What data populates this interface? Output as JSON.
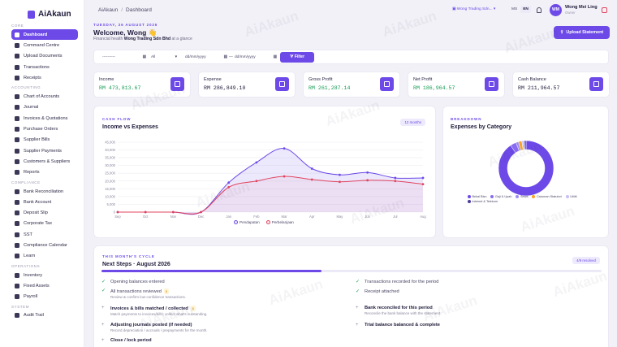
{
  "app": {
    "name": "AiAkaun"
  },
  "sidebar": {
    "sections": [
      {
        "title": "CORE",
        "items": [
          {
            "label": "Dashboard",
            "icon": "grid-icon",
            "active": true
          },
          {
            "label": "Command Centre",
            "icon": "command-icon"
          },
          {
            "label": "Upload Documents",
            "icon": "upload-icon"
          },
          {
            "label": "Transactions",
            "icon": "transactions-icon"
          },
          {
            "label": "Receipts",
            "icon": "receipt-icon"
          }
        ]
      },
      {
        "title": "ACCOUNTING",
        "items": [
          {
            "label": "Chart of Accounts",
            "icon": "list-icon"
          },
          {
            "label": "Journal",
            "icon": "journal-icon"
          },
          {
            "label": "Invoices & Quotations",
            "icon": "invoice-icon"
          },
          {
            "label": "Purchase Orders",
            "icon": "cart-icon"
          },
          {
            "label": "Supplier Bills",
            "icon": "bill-icon"
          },
          {
            "label": "Supplier Payments",
            "icon": "payment-icon"
          },
          {
            "label": "Customers & Suppliers",
            "icon": "users-icon"
          },
          {
            "label": "Reports",
            "icon": "report-icon"
          }
        ]
      },
      {
        "title": "COMPLIANCE",
        "items": [
          {
            "label": "Bank Reconciliation",
            "icon": "check-icon"
          },
          {
            "label": "Bank Account",
            "icon": "bank-icon"
          },
          {
            "label": "Deposit Slip",
            "icon": "deposit-icon"
          },
          {
            "label": "Corporate Tax",
            "icon": "tax-icon"
          },
          {
            "label": "SST",
            "icon": "sst-icon"
          },
          {
            "label": "Compliance Calendar",
            "icon": "calendar-icon"
          },
          {
            "label": "Learn",
            "icon": "learn-icon"
          }
        ]
      },
      {
        "title": "OPERATIONS",
        "items": [
          {
            "label": "Inventory",
            "icon": "inventory-icon"
          },
          {
            "label": "Fixed Assets",
            "icon": "assets-icon"
          },
          {
            "label": "Payroll",
            "icon": "payroll-icon"
          }
        ]
      },
      {
        "title": "SYSTEM",
        "items": [
          {
            "label": "Audit Trail",
            "icon": "audit-icon"
          }
        ]
      }
    ]
  },
  "topbar": {
    "breadcrumb": [
      "AiAkaun",
      "Dashboard"
    ],
    "company": "Wong Trading Sdn...",
    "languages": [
      "MS",
      "EN"
    ],
    "active_language": "EN",
    "user": {
      "initials": "WM",
      "name": "Wong Mei Ling",
      "role": "Owner"
    }
  },
  "header": {
    "date": "TUESDAY, 26 AUGUST 2026",
    "greeting": "Welcome, Wong 👋",
    "subtitle_prefix": "Financial health ",
    "company_name": "Wong Trading Sdn Bhd",
    "subtitle_suffix": " at a glance",
    "upload_button": "Upload Statement"
  },
  "filters": {
    "company_placeholder": "----------",
    "type_value": "All",
    "date_from_placeholder": "dd/mm/yyyy",
    "range_sep": "—",
    "date_to_placeholder": "dd/mm/yyyy",
    "button": "Filter"
  },
  "kpis": [
    {
      "label": "Income",
      "value": "RM 473,813.67",
      "color": "#1a9e57"
    },
    {
      "label": "Expense",
      "value": "RM 286,849.10",
      "color": "#1e1b3a"
    },
    {
      "label": "Gross Profit",
      "value": "RM 261,287.14",
      "color": "#1a9e57"
    },
    {
      "label": "Net Profit",
      "value": "RM 186,964.57",
      "color": "#1a9e57"
    },
    {
      "label": "Cash Balance",
      "value": "RM 211,964.57",
      "color": "#1e1b3a"
    }
  ],
  "cashflow": {
    "eyebrow": "CASH FLOW",
    "title": "Income vs Expenses",
    "badge": "12 months",
    "legend": [
      "Pendapatan",
      "Perbelanjaan"
    ]
  },
  "breakdown": {
    "eyebrow": "BREAKDOWN",
    "title": "Expenses by Category"
  },
  "chart_data": [
    {
      "type": "area",
      "categories": [
        "Sep",
        "Oct",
        "Nov",
        "Dec",
        "Jan",
        "Feb",
        "Mar",
        "Apr",
        "May",
        "Jun",
        "Jul",
        "Aug"
      ],
      "ylim": [
        0,
        45000
      ],
      "yticks": [
        "0",
        "5,000",
        "10,000",
        "15,000",
        "20,000",
        "25,000",
        "30,000",
        "35,000",
        "40,000",
        "45,000"
      ],
      "series": [
        {
          "name": "Pendapatan",
          "color": "#6d4ae8",
          "values": [
            0,
            0,
            0,
            0,
            19000,
            32000,
            41000,
            28000,
            24000,
            25500,
            22000,
            22000
          ]
        },
        {
          "name": "Perbelanjaan",
          "color": "#e0445f",
          "values": [
            0,
            0,
            0,
            0,
            16000,
            20000,
            23000,
            21000,
            19500,
            20500,
            20000,
            18000
          ]
        }
      ]
    },
    {
      "type": "pie",
      "donut": true,
      "categories": [
        "Bekal Bisn",
        "Gaji & Upah",
        "Sewa",
        "Caruman Statutori",
        "Utiliti",
        "Internet & Telekom"
      ],
      "values": [
        90.5,
        3.5,
        1.5,
        2,
        1.5,
        1
      ],
      "colors": [
        "#6d4ae8",
        "#8a6cf0",
        "#a08bf3",
        "#f5a524",
        "#c9bdf8",
        "#4a3c9c"
      ]
    }
  ],
  "cycle": {
    "eyebrow": "THIS MONTH'S CYCLE",
    "title": "Next Steps · August 2026",
    "badge": "4/9 resolved",
    "progress": 0.44,
    "steps_left": [
      {
        "mark": "✓",
        "title": "Opening balances entered",
        "desc": "",
        "badge": ""
      },
      {
        "mark": "✓",
        "title": "All transactions reviewed",
        "desc": "Review & confirm low-confidence transactions.",
        "badge": "5"
      },
      {
        "mark": "+",
        "title": "Invoices & bills matched / collected",
        "desc": "Match payments to invoices/bills; collect what's outstanding.",
        "badge": "1"
      },
      {
        "mark": "+",
        "title": "Adjusting journals posted (if needed)",
        "desc": "Record depreciation / accruals / prepayments for the month.",
        "badge": ""
      },
      {
        "mark": "+",
        "title": "Close / lock period",
        "desc": "",
        "badge": ""
      }
    ],
    "steps_right": [
      {
        "mark": "✓",
        "title": "Transactions recorded for the period",
        "desc": ""
      },
      {
        "mark": "✓",
        "title": "Receipt attached",
        "desc": ""
      },
      {
        "mark": "+",
        "title": "Bank reconciled for this period",
        "desc": "Reconcile the bank balance with the statement."
      },
      {
        "mark": "+",
        "title": "Trial balance balanced & complete",
        "desc": ""
      }
    ]
  },
  "watermark": "AiAkaun"
}
